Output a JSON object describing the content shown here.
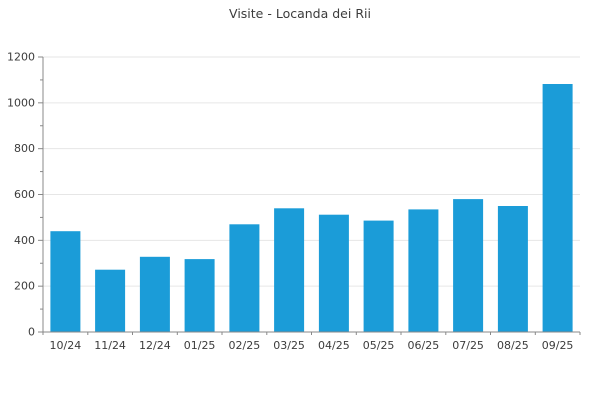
{
  "chart_data": {
    "type": "bar",
    "title": "Visite - Locanda dei Rii",
    "categories": [
      "10/24",
      "11/24",
      "12/24",
      "01/25",
      "02/25",
      "03/25",
      "04/25",
      "05/25",
      "06/25",
      "07/25",
      "08/25",
      "09/25"
    ],
    "values": [
      440,
      272,
      328,
      318,
      470,
      540,
      512,
      486,
      535,
      580,
      550,
      1082
    ],
    "xlabel": "",
    "ylabel": "",
    "ylim": [
      0,
      1200
    ],
    "ytick_labels": [
      "0",
      "200",
      "400",
      "600",
      "800",
      "1000",
      "1200"
    ],
    "ytick_step": 200,
    "yminor_step": 100,
    "grid": "horizontal-major",
    "legend": "none",
    "colors": {
      "bar": "#1b9cd8",
      "grid": "#e6e6e6",
      "axis": "#888888",
      "text": "#3c3c3c"
    }
  }
}
